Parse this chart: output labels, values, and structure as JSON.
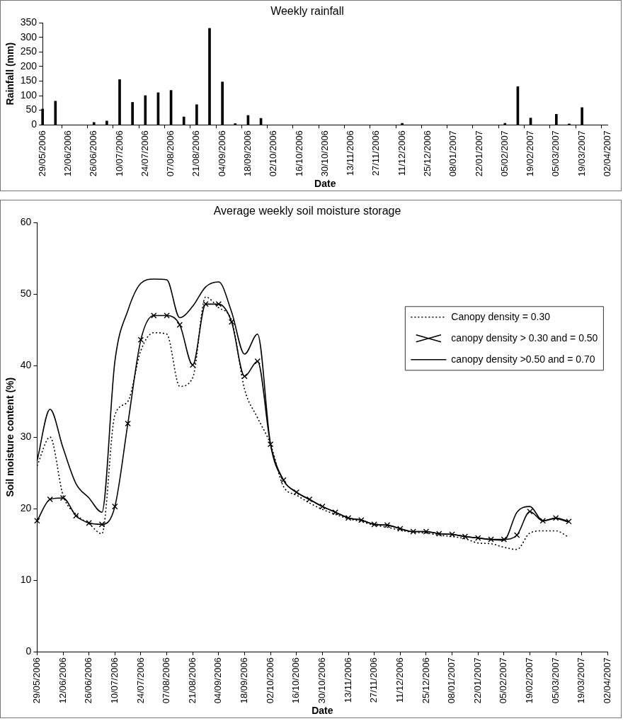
{
  "chart_data": [
    {
      "type": "bar",
      "title": "Weekly rainfall",
      "xlabel": "Date",
      "ylabel": "Rainfall (mm)",
      "color": "#000000",
      "categories": [
        "29/05/2006",
        null,
        "12/06/2006",
        null,
        "26/06/2006",
        null,
        "10/07/2006",
        null,
        "24/07/2006",
        null,
        "07/08/2006",
        null,
        "21/08/2006",
        null,
        "04/09/2006",
        null,
        "18/09/2006",
        null,
        "02/10/2006",
        null,
        "16/10/2006",
        null,
        "30/10/2006",
        null,
        "13/11/2006",
        null,
        "27/11/2006",
        null,
        "11/12/2006",
        null,
        "25/12/2006",
        null,
        "08/01/2007",
        null,
        "22/01/2007",
        null,
        "05/02/2007",
        null,
        "19/02/2007",
        null,
        "05/03/2007",
        null,
        "19/03/2007",
        null,
        "02/04/2007"
      ],
      "values": [
        54,
        81,
        null,
        null,
        8,
        13,
        155,
        77,
        100,
        110,
        118,
        27,
        69,
        331,
        147,
        4,
        32,
        22,
        null,
        null,
        null,
        null,
        null,
        null,
        null,
        null,
        null,
        null,
        5,
        null,
        null,
        null,
        null,
        null,
        null,
        null,
        5,
        131,
        23,
        null,
        36,
        3,
        59,
        null,
        null
      ],
      "ylim": [
        0,
        350
      ],
      "yticks": [
        0,
        50,
        100,
        150,
        200,
        250,
        300,
        350
      ],
      "grid": false,
      "legend": false
    },
    {
      "type": "line",
      "title": "Average weekly soil moisture storage",
      "xlabel": "Date",
      "ylabel": "Soil moisture content (%)",
      "categories": [
        "29/05/2006",
        null,
        "12/06/2006",
        null,
        "26/06/2006",
        null,
        "10/07/2006",
        null,
        "24/07/2006",
        null,
        "07/08/2006",
        null,
        "21/08/2006",
        null,
        "04/09/2006",
        null,
        "18/09/2006",
        null,
        "02/10/2006",
        null,
        "16/10/2006",
        null,
        "30/10/2006",
        null,
        "13/11/2006",
        null,
        "27/11/2006",
        null,
        "11/12/2006",
        null,
        "25/12/2006",
        null,
        "08/01/2007",
        null,
        "22/01/2007",
        null,
        "05/02/2007",
        null,
        "19/02/2007",
        null,
        "05/03/2007",
        null,
        "19/03/2007",
        null,
        "02/04/2007"
      ],
      "series": [
        {
          "name": "Canopy density = 0.30",
          "color": "#000000",
          "line_style": "dotted",
          "marker": "none",
          "values": [
            26,
            30,
            21.9,
            19.2,
            17.9,
            16.5,
            33.1,
            35,
            42.1,
            44.6,
            44.4,
            37.1,
            38.3,
            49.6,
            48.1,
            46.3,
            36.7,
            32.7,
            29,
            23.1,
            21.9,
            20.8,
            19.9,
            19.2,
            18.6,
            18.2,
            17.7,
            17.4,
            17,
            16.7,
            16.6,
            16.3,
            16.1,
            15.8,
            15.2,
            15.1,
            14.6,
            14.3,
            16.6,
            16.9,
            16.9,
            16,
            null,
            null,
            null
          ]
        },
        {
          "name": "canopy density > 0.30 and = 0.50",
          "color": "#000000",
          "line_style": "solid",
          "marker": "cross",
          "values": [
            18.3,
            21.3,
            21.5,
            19,
            18,
            17.8,
            20.3,
            31.9,
            43.6,
            47,
            47,
            45.7,
            40.1,
            48.6,
            48.6,
            46.1,
            38.5,
            40.6,
            29,
            24,
            22.3,
            21.3,
            20.3,
            19.5,
            18.7,
            18.4,
            17.8,
            17.7,
            17.2,
            16.8,
            16.8,
            16.5,
            16.4,
            16.1,
            15.9,
            15.7,
            15.7,
            16.3,
            19.6,
            18.3,
            18.7,
            18.2,
            null,
            null,
            null
          ]
        },
        {
          "name": "canopy density >0.50 and = 0.70",
          "color": "#000000",
          "line_style": "solid",
          "marker": "none",
          "values": [
            26.7,
            33.9,
            28.5,
            23.5,
            21.5,
            19.5,
            40.6,
            47.7,
            51.5,
            52.1,
            52,
            46.7,
            48.3,
            51,
            51.7,
            47.5,
            41.6,
            44.4,
            29,
            24,
            22.3,
            21.3,
            20.3,
            19.5,
            18.7,
            18.4,
            17.8,
            17.7,
            17.2,
            16.8,
            16.8,
            16.5,
            16.4,
            16.1,
            15.9,
            15.7,
            15.6,
            19.5,
            20.3,
            18.3,
            18.6,
            18.1,
            null,
            null,
            null
          ]
        }
      ],
      "ylim": [
        0,
        60
      ],
      "yticks": [
        0,
        10,
        20,
        30,
        40,
        50,
        60
      ],
      "grid": false,
      "legend": "right"
    }
  ]
}
